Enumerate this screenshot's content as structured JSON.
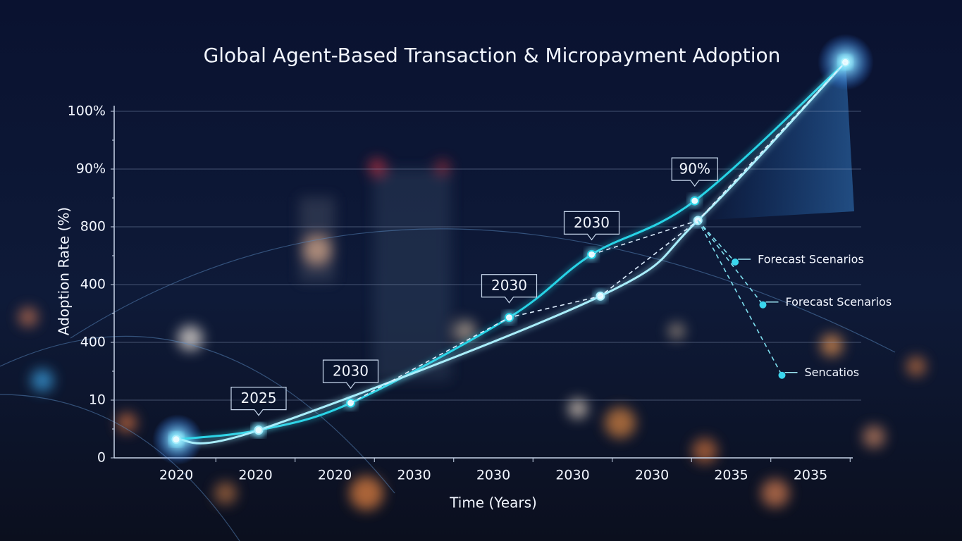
{
  "chart_data": {
    "type": "line",
    "title": "Global Agent-Based Transaction & Micropayment Adoption",
    "x_label": "Time (Years)",
    "y_label": "Adoption Rate (%)",
    "categories": [
      "2020",
      "2020",
      "2020",
      "2030",
      "2030",
      "2030",
      "2030",
      "2035",
      "2035"
    ],
    "y_categories": [
      "0",
      "10",
      "400",
      "400",
      "800",
      "90%",
      "100%"
    ],
    "grid": true,
    "series": [
      {
        "color": "#27d3e6",
        "style": "solid",
        "x": [
          0,
          1.04,
          2.2,
          4.2,
          5.24,
          6.54,
          8.44
        ],
        "values": [
          0.32,
          0.48,
          0.95,
          2.43,
          3.52,
          4.45,
          6.85
        ]
      },
      {
        "color": "#a9eefc",
        "style": "solid",
        "x": [
          0,
          1.04,
          5.35,
          6.58,
          8.44
        ],
        "values": [
          0.32,
          0.48,
          2.8,
          4.11,
          6.85
        ]
      },
      {
        "color": "#dfefff",
        "style": "dashed",
        "x": [
          2.2,
          4.2,
          5.35,
          6.58,
          8.44
        ],
        "values": [
          0.95,
          2.43,
          2.8,
          4.11,
          6.85
        ]
      },
      {
        "color": "#dfefff",
        "style": "dashed",
        "x": [
          5.24,
          6.58
        ],
        "values": [
          3.52,
          4.11
        ]
      }
    ],
    "callouts": [
      {
        "text": "2025",
        "x": 1.04,
        "y": 0.48
      },
      {
        "text": "2030",
        "x": 2.2,
        "y": 0.95
      },
      {
        "text": "2030",
        "x": 4.2,
        "y": 2.43
      },
      {
        "text": "2030",
        "x": 5.24,
        "y": 3.52
      },
      {
        "text": "90%",
        "x": 6.54,
        "y": 4.45
      }
    ],
    "branch_origin": {
      "x": 6.58,
      "y": 4.11
    },
    "branches": [
      {
        "text": "Forecast Scenarios",
        "x": 7.05,
        "y": 3.39
      },
      {
        "text": "Forecast Scenarios",
        "x": 7.4,
        "y": 2.65
      },
      {
        "text": "Sencatios",
        "x": 7.64,
        "y": 1.43
      }
    ]
  }
}
